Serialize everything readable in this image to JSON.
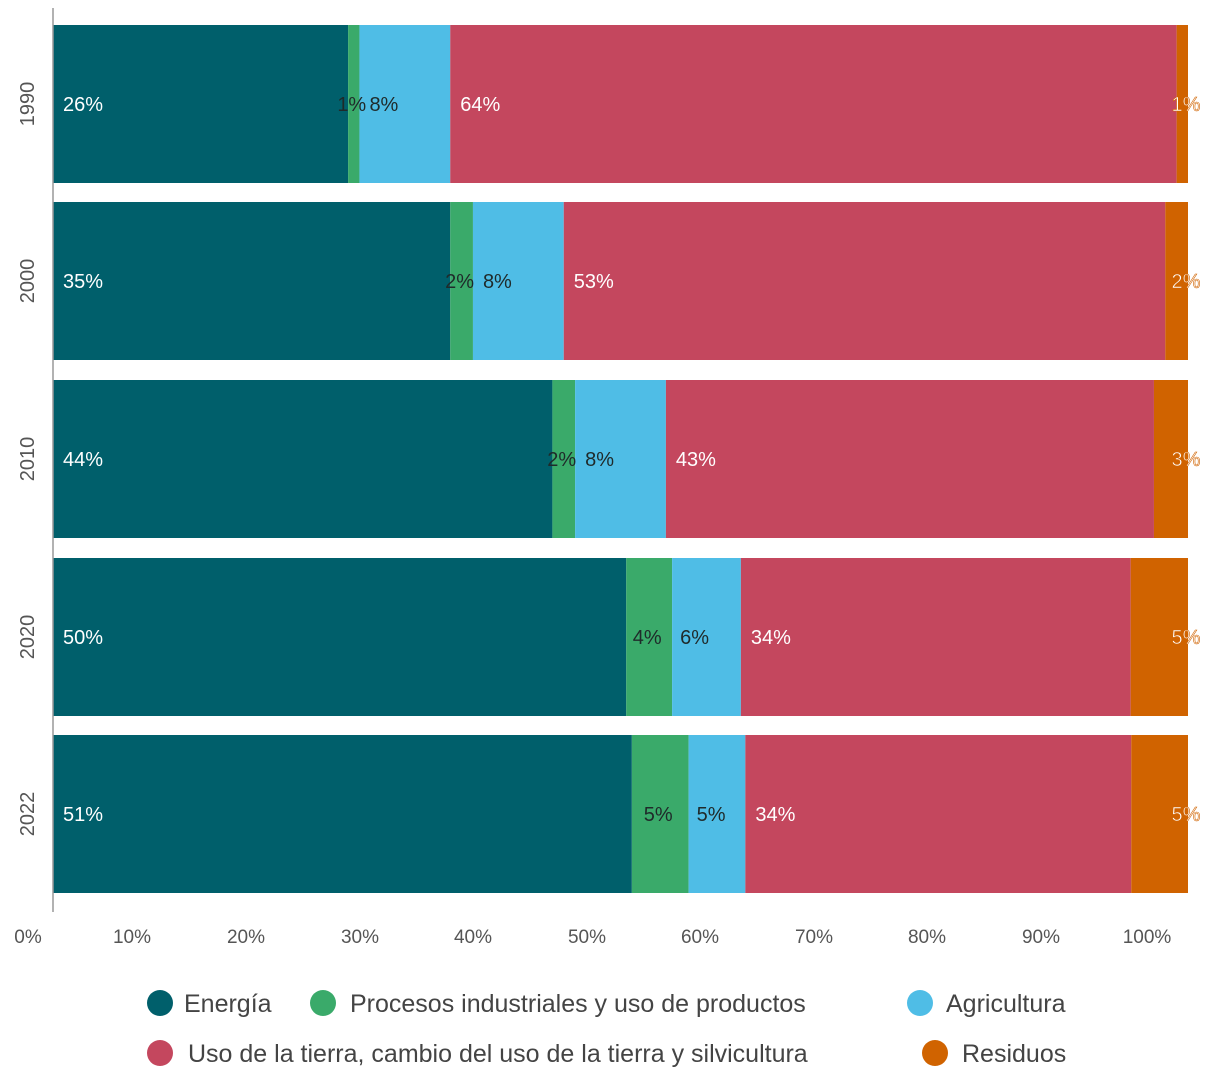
{
  "chart_data": {
    "type": "bar",
    "orientation": "horizontal",
    "stacked": true,
    "categories": [
      "1990",
      "2000",
      "2010",
      "2020",
      "2022"
    ],
    "series": [
      {
        "name": "Energía",
        "color": "#005f6b",
        "values": [
          26,
          35,
          44,
          50,
          51
        ],
        "labels": [
          "26%",
          "35%",
          "44%",
          "50%",
          "51%"
        ],
        "label_color": "#ffffff"
      },
      {
        "name": "Procesos industriales y uso de productos",
        "color": "#3aaa6a",
        "values": [
          1,
          2,
          2,
          4,
          5
        ],
        "labels": [
          "1%",
          "2%",
          "2%",
          "4%",
          "5%"
        ],
        "label_color": "#1f2a2a"
      },
      {
        "name": "Agricultura",
        "color": "#4fbde6",
        "values": [
          8,
          8,
          8,
          6,
          5
        ],
        "labels": [
          "8%",
          "8%",
          "8%",
          "6%",
          "5%"
        ],
        "label_color": "#1f2a2a"
      },
      {
        "name": "Uso de la tierra, cambio del uso de la tierra y silvicultura",
        "color": "#c4475e",
        "values": [
          64,
          53,
          43,
          34,
          34
        ],
        "labels": [
          "64%",
          "53%",
          "43%",
          "34%",
          "34%"
        ],
        "label_color": "#ffffff"
      },
      {
        "name": "Residuos",
        "color": "#d06300",
        "values": [
          1,
          2,
          3,
          5,
          5
        ],
        "labels": [
          "1%",
          "2%",
          "3%",
          "5%",
          "5%"
        ],
        "label_color": "#ffffff"
      }
    ],
    "xlim": [
      0,
      100
    ],
    "xticks": [
      "0%",
      "10%",
      "20%",
      "30%",
      "40%",
      "50%",
      "60%",
      "70%",
      "80%",
      "90%",
      "100%"
    ],
    "legend_position": "bottom",
    "grid": false,
    "title": "",
    "xlabel": "",
    "ylabel": ""
  }
}
